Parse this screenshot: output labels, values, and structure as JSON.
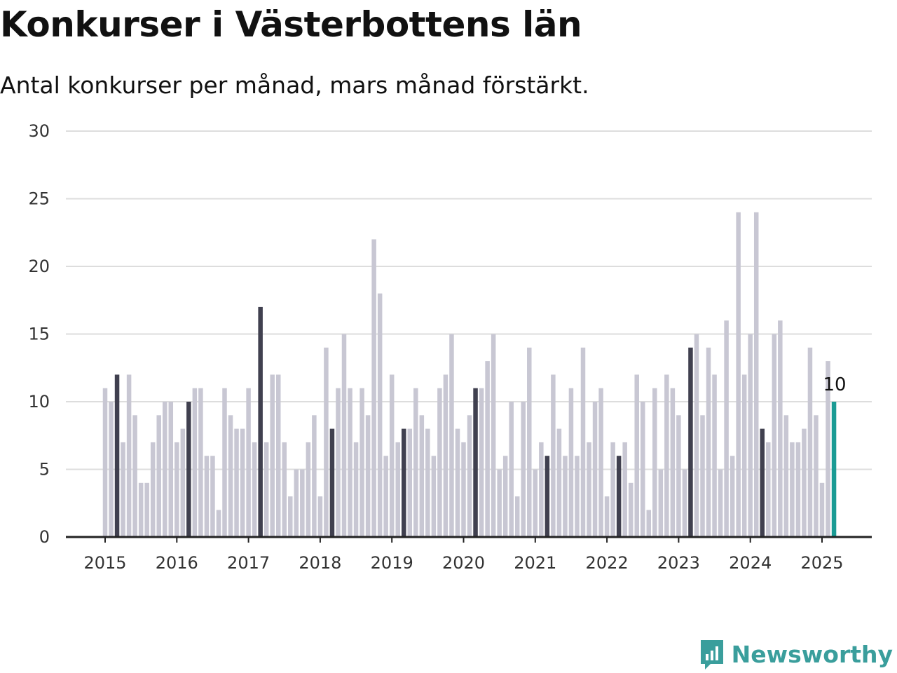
{
  "chart_data": {
    "type": "bar",
    "title": "Konkurser i Västerbottens län",
    "subtitle": "Antal konkurser per månad, mars månad förstärkt.",
    "xlabel": "",
    "ylabel": "",
    "ylim": [
      0,
      30
    ],
    "yticks": [
      0,
      5,
      10,
      15,
      20,
      25,
      30
    ],
    "xticks": [
      "2015",
      "2016",
      "2017",
      "2018",
      "2019",
      "2020",
      "2021",
      "2022",
      "2023",
      "2024",
      "2025"
    ],
    "grid": true,
    "start": "2015-01",
    "end": "2025-03",
    "values": [
      11,
      10,
      12,
      7,
      12,
      9,
      4,
      4,
      7,
      9,
      10,
      10,
      7,
      8,
      10,
      11,
      11,
      6,
      6,
      2,
      11,
      9,
      8,
      8,
      11,
      7,
      17,
      7,
      12,
      12,
      7,
      3,
      5,
      5,
      7,
      9,
      3,
      14,
      8,
      11,
      15,
      11,
      7,
      11,
      9,
      22,
      18,
      6,
      12,
      7,
      8,
      8,
      11,
      9,
      8,
      6,
      11,
      12,
      15,
      8,
      7,
      9,
      11,
      11,
      13,
      15,
      5,
      6,
      10,
      3,
      10,
      14,
      5,
      7,
      6,
      12,
      8,
      6,
      11,
      6,
      14,
      7,
      10,
      11,
      3,
      7,
      6,
      7,
      4,
      12,
      10,
      2,
      11,
      5,
      12,
      11,
      9,
      5,
      14,
      15,
      9,
      14,
      12,
      5,
      16,
      6,
      24,
      12,
      15,
      24,
      8,
      7,
      15,
      16,
      9,
      7,
      7,
      8,
      14,
      9,
      4,
      13,
      10
    ],
    "highlight_label": "10",
    "colors": {
      "regular": "#c8c7d3",
      "march": "#40404f",
      "latest": "#1a9b94",
      "grid": "#dddddd",
      "axis": "#222222"
    }
  },
  "brand": {
    "name": "Newsworthy",
    "icon": "newsworthy-logo-icon",
    "color": "#3a9e9c"
  }
}
